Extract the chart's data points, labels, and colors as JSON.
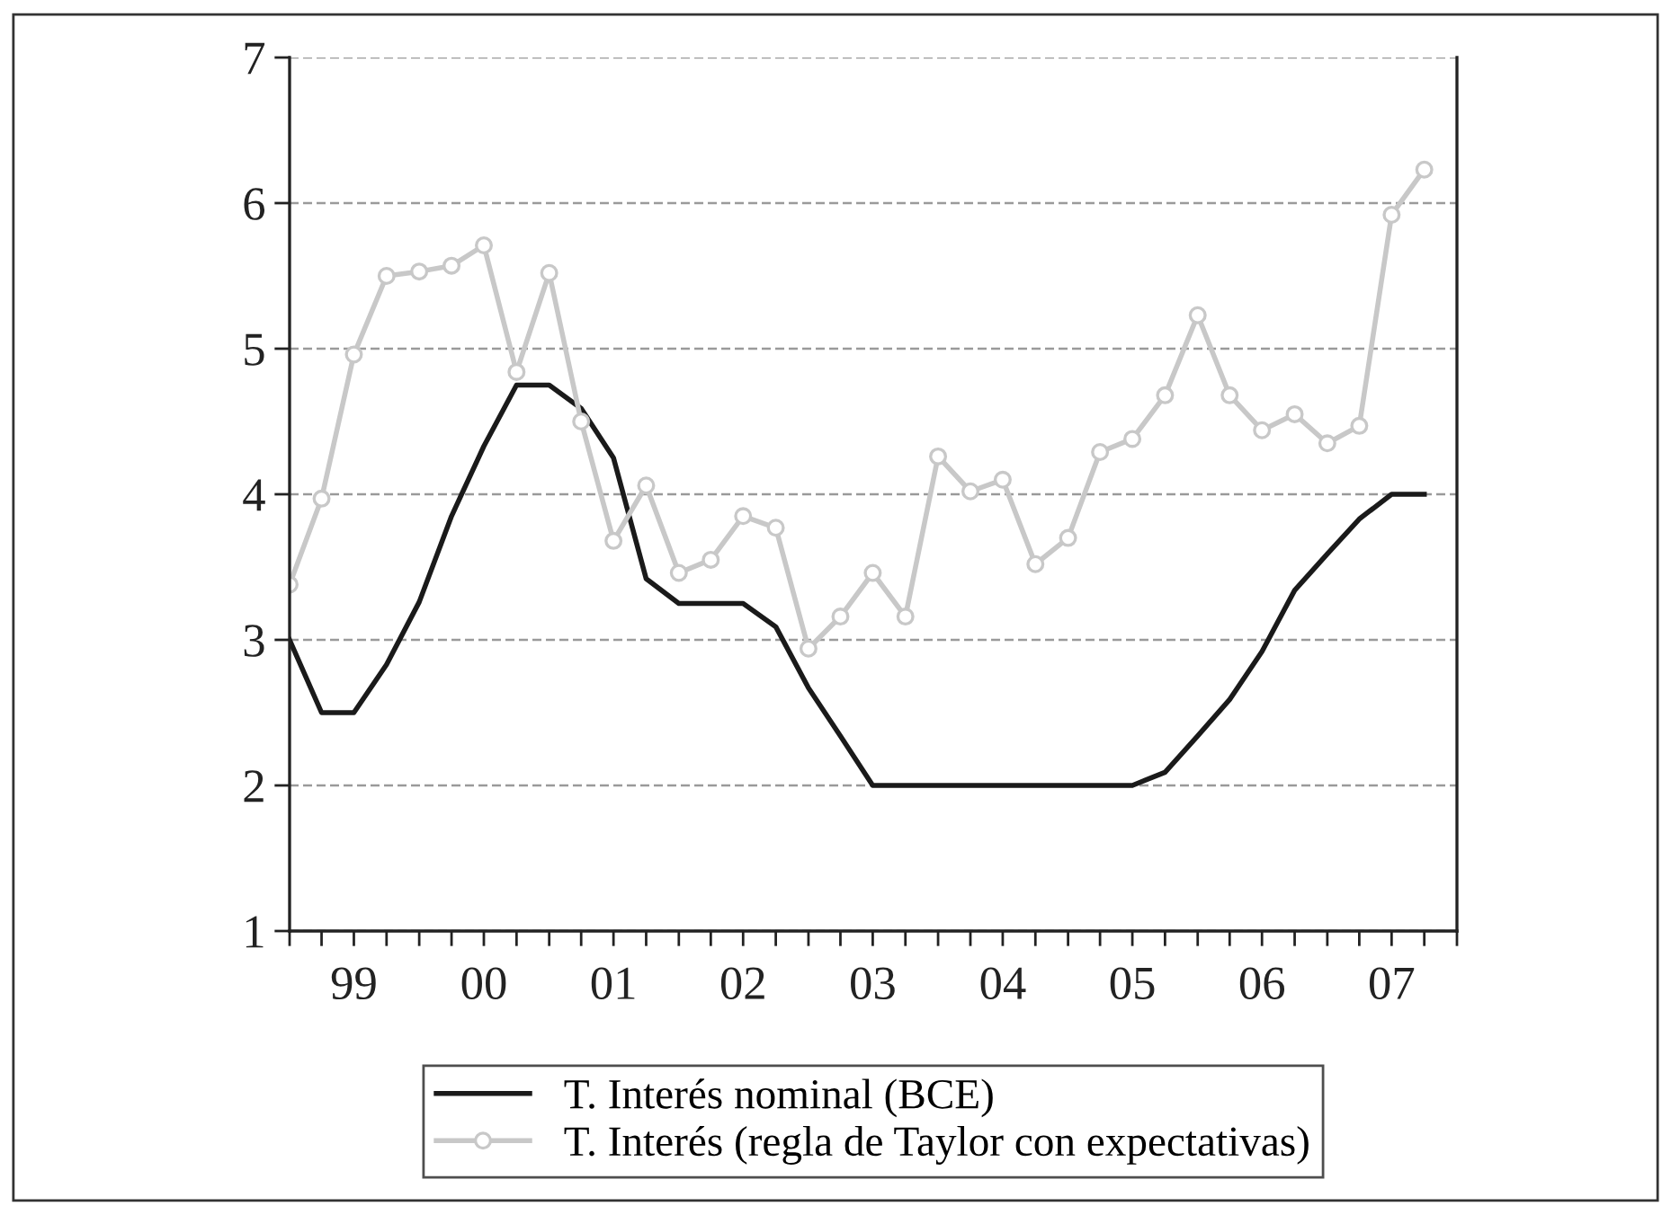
{
  "chart_data": {
    "type": "line",
    "x": [
      "1999-01",
      "1999-04",
      "1999-07",
      "1999-10",
      "2000-01",
      "2000-04",
      "2000-07",
      "2000-10",
      "2001-01",
      "2001-04",
      "2001-07",
      "2001-10",
      "2002-01",
      "2002-04",
      "2002-07",
      "2002-10",
      "2003-01",
      "2003-04",
      "2003-07",
      "2003-10",
      "2004-01",
      "2004-04",
      "2004-07",
      "2004-10",
      "2005-01",
      "2005-04",
      "2005-07",
      "2005-10",
      "2006-01",
      "2006-04",
      "2006-07",
      "2006-10",
      "2007-01",
      "2007-04",
      "2007-07",
      "2007-10"
    ],
    "series": [
      {
        "name": "T. Interés nominal (BCE)",
        "color": "#1a1a1a",
        "marker": "none",
        "values": [
          3.0,
          2.5,
          2.5,
          2.83,
          3.26,
          3.85,
          4.33,
          4.75,
          4.75,
          4.59,
          4.25,
          3.42,
          3.25,
          3.25,
          3.25,
          3.09,
          2.67,
          2.34,
          2.0,
          2.0,
          2.0,
          2.0,
          2.0,
          2.0,
          2.0,
          2.0,
          2.0,
          2.09,
          2.34,
          2.59,
          2.92,
          3.34,
          3.59,
          3.83,
          4.0,
          4.0
        ]
      },
      {
        "name": "T. Interés (regla de Taylor con expectativas)",
        "color": "#c8c8c8",
        "marker": "circle",
        "values": [
          3.38,
          3.97,
          4.96,
          5.5,
          5.53,
          5.57,
          5.71,
          4.84,
          5.52,
          4.5,
          3.68,
          4.06,
          3.46,
          3.55,
          3.85,
          3.77,
          2.94,
          3.16,
          3.46,
          3.16,
          4.26,
          4.02,
          4.1,
          3.52,
          3.7,
          4.29,
          4.38,
          4.68,
          5.23,
          4.68,
          4.44,
          4.55,
          4.35,
          4.47,
          5.92,
          6.23
        ]
      }
    ],
    "xlim": [
      "1999-01",
      "2008-01"
    ],
    "xticks": [
      {
        "value": "1999-01",
        "label": null
      },
      {
        "value": "1999-04",
        "label": null
      },
      {
        "value": "1999-07",
        "label": "99"
      },
      {
        "value": "1999-10",
        "label": null
      },
      {
        "value": "2000-01",
        "label": null
      },
      {
        "value": "2000-04",
        "label": null
      },
      {
        "value": "2000-07",
        "label": "00"
      },
      {
        "value": "2000-10",
        "label": null
      },
      {
        "value": "2001-01",
        "label": null
      },
      {
        "value": "2001-04",
        "label": null
      },
      {
        "value": "2001-07",
        "label": "01"
      },
      {
        "value": "2001-10",
        "label": null
      },
      {
        "value": "2002-01",
        "label": null
      },
      {
        "value": "2002-04",
        "label": null
      },
      {
        "value": "2002-07",
        "label": "02"
      },
      {
        "value": "2002-10",
        "label": null
      },
      {
        "value": "2003-01",
        "label": null
      },
      {
        "value": "2003-04",
        "label": null
      },
      {
        "value": "2003-07",
        "label": "03"
      },
      {
        "value": "2003-10",
        "label": null
      },
      {
        "value": "2004-01",
        "label": null
      },
      {
        "value": "2004-04",
        "label": null
      },
      {
        "value": "2004-07",
        "label": "04"
      },
      {
        "value": "2004-10",
        "label": null
      },
      {
        "value": "2005-01",
        "label": null
      },
      {
        "value": "2005-04",
        "label": null
      },
      {
        "value": "2005-07",
        "label": "05"
      },
      {
        "value": "2005-10",
        "label": null
      },
      {
        "value": "2006-01",
        "label": null
      },
      {
        "value": "2006-04",
        "label": null
      },
      {
        "value": "2006-07",
        "label": "06"
      },
      {
        "value": "2006-10",
        "label": null
      },
      {
        "value": "2007-01",
        "label": null
      },
      {
        "value": "2007-04",
        "label": null
      },
      {
        "value": "2007-07",
        "label": "07"
      },
      {
        "value": "2007-10",
        "label": null
      },
      {
        "value": "2008-01",
        "label": null
      }
    ],
    "ylim": [
      1,
      7
    ],
    "yticks": [
      1,
      2,
      3,
      4,
      5,
      6,
      7
    ],
    "grid": "y",
    "legend": "bottom",
    "line_style": "solid"
  }
}
